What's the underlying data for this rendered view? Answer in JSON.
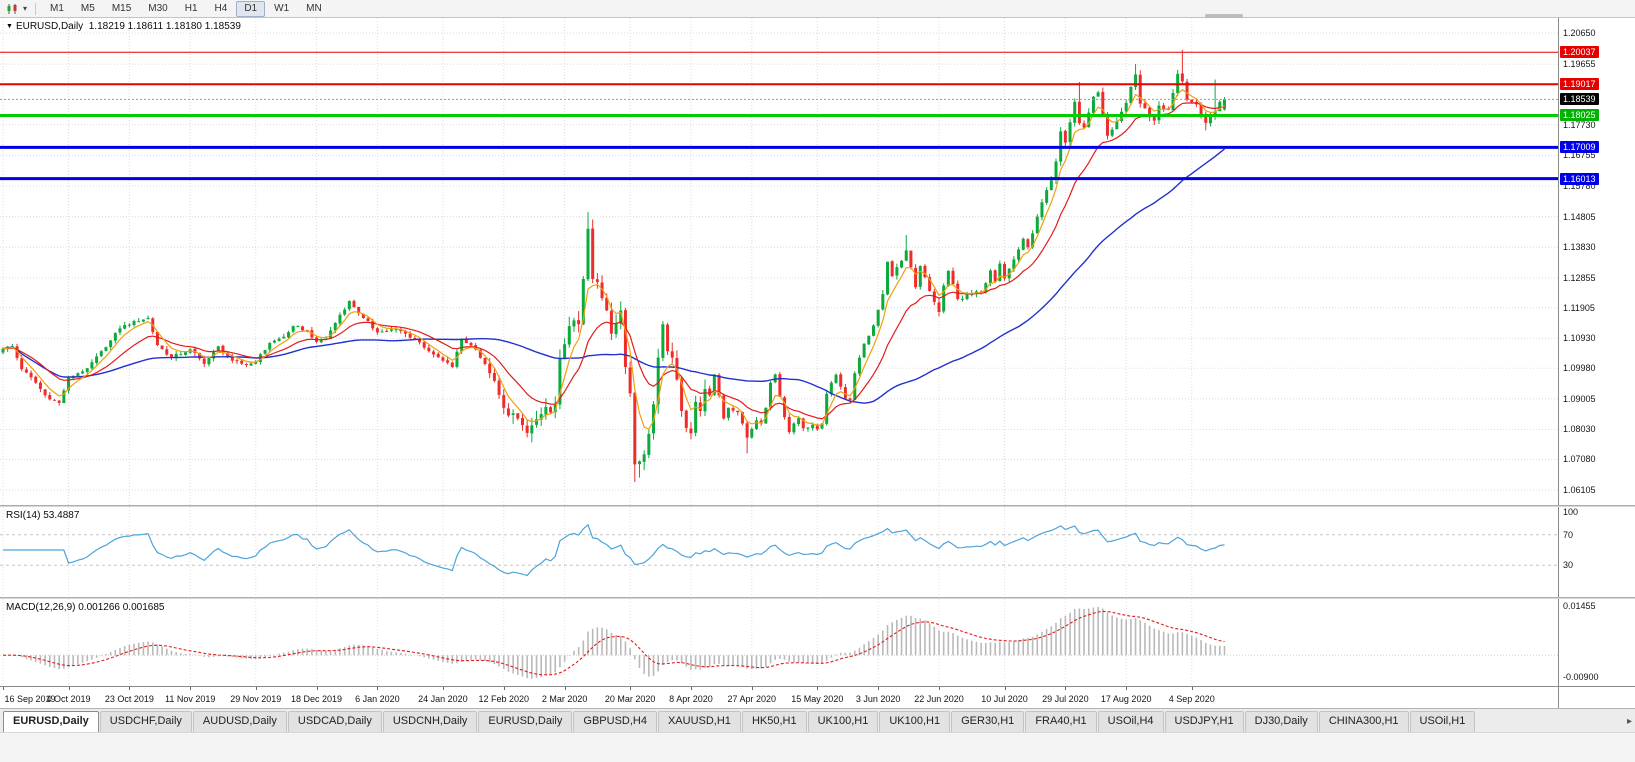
{
  "toolbar": {
    "timeframes": [
      {
        "label": "M1",
        "active": false
      },
      {
        "label": "M5",
        "active": false
      },
      {
        "label": "M15",
        "active": false
      },
      {
        "label": "M30",
        "active": false
      },
      {
        "label": "H1",
        "active": false
      },
      {
        "label": "H4",
        "active": false
      },
      {
        "label": "D1",
        "active": true
      },
      {
        "label": "W1",
        "active": false
      },
      {
        "label": "MN",
        "active": false
      }
    ]
  },
  "chart": {
    "symbol": "EURUSD,Daily",
    "ohlc": "1.18219 1.18611 1.18180 1.18539"
  },
  "price_axis": {
    "plain_labels": [
      "1.20650",
      "1.19655",
      "1.17730",
      "1.16755",
      "1.15780",
      "1.14805",
      "1.13830",
      "1.12855",
      "1.11905",
      "1.10930",
      "1.09980",
      "1.09005",
      "1.08030",
      "1.07080",
      "1.06105"
    ],
    "badges": [
      {
        "text": "1.20037",
        "color": "#e60000"
      },
      {
        "text": "1.19017",
        "color": "#e60000"
      },
      {
        "text": "1.18539",
        "color": "#000000"
      },
      {
        "text": "1.18025",
        "color": "#00b300"
      },
      {
        "text": "1.17009",
        "color": "#0000e6"
      },
      {
        "text": "1.16013",
        "color": "#0000e6"
      }
    ]
  },
  "hlines": [
    {
      "price": 1.20037,
      "color": "#e60000",
      "width": 1
    },
    {
      "price": 1.19017,
      "color": "#e60000",
      "width": 2
    },
    {
      "price": 1.18025,
      "color": "#00cc00",
      "width": 3
    },
    {
      "price": 1.17009,
      "color": "#0000e6",
      "width": 3
    },
    {
      "price": 1.16013,
      "color": "#0000e6",
      "width": 3
    }
  ],
  "bid_line": {
    "price": 1.18539,
    "color": "#999999"
  },
  "date_axis": {
    "labels": [
      "16 Sep 2019",
      "4 Oct 2019",
      "23 Oct 2019",
      "11 Nov 2019",
      "29 Nov 2019",
      "18 Dec 2019",
      "6 Jan 2020",
      "24 Jan 2020",
      "12 Feb 2020",
      "2 Mar 2020",
      "20 Mar 2020",
      "8 Apr 2020",
      "27 Apr 2020",
      "15 May 2020",
      "3 Jun 2020",
      "22 Jun 2020",
      "10 Jul 2020",
      "29 Jul 2020",
      "17 Aug 2020",
      "4 Sep 2020"
    ]
  },
  "rsi": {
    "label": "RSI(14) 53.4887",
    "period": 14,
    "current": 53.4887,
    "color": "#4da3db",
    "levels": [
      {
        "value": 100,
        "text": "100",
        "line": false
      },
      {
        "value": 70,
        "text": "70",
        "line": true
      },
      {
        "value": 30,
        "text": "30",
        "line": true
      }
    ]
  },
  "macd": {
    "label": "MACD(12,26,9) 0.001266 0.001685",
    "fast": 12,
    "slow": 26,
    "signal": 9,
    "macd_value": 0.001266,
    "signal_value": 0.001685,
    "axis_top": "0.01455",
    "axis_bottom": "-0.00900",
    "hist_color": "#b9b9b9",
    "signal_color": "#e41b1b"
  },
  "tabs": {
    "items": [
      {
        "label": "EURUSD,Daily",
        "active": true
      },
      {
        "label": "USDCHF,Daily",
        "active": false
      },
      {
        "label": "AUDUSD,Daily",
        "active": false
      },
      {
        "label": "USDCAD,Daily",
        "active": false
      },
      {
        "label": "USDCNH,Daily",
        "active": false
      },
      {
        "label": "EURUSD,Daily",
        "active": false
      },
      {
        "label": "GBPUSD,H4",
        "active": false
      },
      {
        "label": "XAUUSD,H1",
        "active": false
      },
      {
        "label": "HK50,H1",
        "active": false
      },
      {
        "label": "UK100,H1",
        "active": false
      },
      {
        "label": "UK100,H1",
        "active": false
      },
      {
        "label": "GER30,H1",
        "active": false
      },
      {
        "label": "FRA40,H1",
        "active": false
      },
      {
        "label": "USOil,H4",
        "active": false
      },
      {
        "label": "USDJPY,H1",
        "active": false
      },
      {
        "label": "DJ30,Daily",
        "active": false
      },
      {
        "label": "CHINA300,H1",
        "active": false
      },
      {
        "label": "USOil,H1",
        "active": false
      }
    ],
    "scroll_right_icon": "▸"
  },
  "chart_data": {
    "type": "candlestick",
    "symbol": "EURUSD",
    "timeframe": "Daily",
    "bars": 262,
    "current_bar": {
      "open": 1.18219,
      "high": 1.18611,
      "low": 1.1818,
      "close": 1.18539
    },
    "y_range": [
      1.05627,
      1.21127
    ],
    "tick_bars": [
      0,
      14,
      27,
      40,
      54,
      67,
      80,
      94,
      107,
      120,
      134,
      147,
      160,
      174,
      187,
      200,
      214,
      227,
      240,
      254
    ],
    "up_color": "#0caa3c",
    "down_color": "#ee2c2c",
    "ma": [
      {
        "kind": "sma",
        "period": 52,
        "color": "#2230cf",
        "width": 1.4
      },
      {
        "kind": "ema",
        "period": 15,
        "color": "#e41b1b",
        "width": 1.2
      },
      {
        "kind": "ema",
        "period": 5,
        "color": "#efa00b",
        "width": 1.2
      }
    ],
    "anchors": [
      [
        0,
        1.106
      ],
      [
        2,
        1.1068
      ],
      [
        4,
        1.0995
      ],
      [
        7,
        1.0952
      ],
      [
        9,
        1.0912
      ],
      [
        12,
        1.0888
      ],
      [
        14,
        1.0968
      ],
      [
        18,
        1.0998
      ],
      [
        22,
        1.1065
      ],
      [
        25,
        1.1125
      ],
      [
        28,
        1.1148
      ],
      [
        31,
        1.1158
      ],
      [
        33,
        1.1072
      ],
      [
        36,
        1.1032
      ],
      [
        40,
        1.1058
      ],
      [
        43,
        1.1012
      ],
      [
        46,
        1.1068
      ],
      [
        49,
        1.1022
      ],
      [
        52,
        1.1008
      ],
      [
        54,
        1.1018
      ],
      [
        57,
        1.1078
      ],
      [
        60,
        1.1098
      ],
      [
        62,
        1.1132
      ],
      [
        65,
        1.1118
      ],
      [
        67,
        1.1082
      ],
      [
        69,
        1.1092
      ],
      [
        72,
        1.1168
      ],
      [
        74,
        1.1212
      ],
      [
        77,
        1.1158
      ],
      [
        80,
        1.1112
      ],
      [
        84,
        1.1122
      ],
      [
        88,
        1.1092
      ],
      [
        92,
        1.1042
      ],
      [
        94,
        1.1022
      ],
      [
        96,
        1.1002
      ],
      [
        98,
        1.1092
      ],
      [
        101,
        1.1058
      ],
      [
        104,
        1.0982
      ],
      [
        107,
        1.0872
      ],
      [
        110,
        1.0838
      ],
      [
        112,
        1.0792
      ],
      [
        115,
        1.0852
      ],
      [
        118,
        1.0882
      ],
      [
        119,
        1.1028
      ],
      [
        121,
        1.1132
      ],
      [
        123,
        1.1138
      ],
      [
        124,
        1.1282
      ],
      [
        125,
        1.1442
      ],
      [
        126,
        1.1282
      ],
      [
        127,
        1.1272
      ],
      [
        129,
        1.1182
      ],
      [
        130,
        1.1108
      ],
      [
        132,
        1.1182
      ],
      [
        133,
        1.1002
      ],
      [
        134,
        1.0918
      ],
      [
        135,
        1.0692
      ],
      [
        136,
        1.0702
      ],
      [
        137,
        1.0724
      ],
      [
        138,
        1.0789
      ],
      [
        139,
        1.0883
      ],
      [
        140,
        1.1032
      ],
      [
        141,
        1.1138
      ],
      [
        142,
        1.1052
      ],
      [
        143,
        1.1032
      ],
      [
        144,
        1.0962
      ],
      [
        145,
        1.0862
      ],
      [
        146,
        1.0808
      ],
      [
        147,
        1.0791
      ],
      [
        148,
        1.0891
      ],
      [
        149,
        1.0862
      ],
      [
        150,
        1.0932
      ],
      [
        151,
        1.0912
      ],
      [
        152,
        1.0978
      ],
      [
        153,
        1.0912
      ],
      [
        154,
        1.0838
      ],
      [
        155,
        1.0872
      ],
      [
        157,
        1.0858
      ],
      [
        158,
        1.0822
      ],
      [
        159,
        1.0777
      ],
      [
        161,
        1.0832
      ],
      [
        162,
        1.0822
      ],
      [
        163,
        1.0872
      ],
      [
        164,
        1.0952
      ],
      [
        165,
        1.0978
      ],
      [
        166,
        1.0907
      ],
      [
        167,
        1.0842
      ],
      [
        168,
        1.0795
      ],
      [
        170,
        1.0839
      ],
      [
        171,
        1.0807
      ],
      [
        173,
        1.0818
      ],
      [
        174,
        1.0804
      ],
      [
        175,
        1.0822
      ],
      [
        176,
        1.0917
      ],
      [
        178,
        1.0977
      ],
      [
        180,
        1.0902
      ],
      [
        181,
        1.0897
      ],
      [
        182,
        1.0982
      ],
      [
        184,
        1.1076
      ],
      [
        185,
        1.1101
      ],
      [
        186,
        1.1134
      ],
      [
        188,
        1.1234
      ],
      [
        189,
        1.1337
      ],
      [
        190,
        1.1291
      ],
      [
        192,
        1.134
      ],
      [
        193,
        1.1373
      ],
      [
        195,
        1.1256
      ],
      [
        196,
        1.1323
      ],
      [
        198,
        1.1244
      ],
      [
        200,
        1.1177
      ],
      [
        201,
        1.1261
      ],
      [
        202,
        1.1308
      ],
      [
        204,
        1.1218
      ],
      [
        205,
        1.1219
      ],
      [
        207,
        1.1234
      ],
      [
        209,
        1.1239
      ],
      [
        211,
        1.1309
      ],
      [
        212,
        1.1274
      ],
      [
        213,
        1.1331
      ],
      [
        214,
        1.1284
      ],
      [
        216,
        1.1344
      ],
      [
        218,
        1.141
      ],
      [
        219,
        1.1383
      ],
      [
        220,
        1.1427
      ],
      [
        222,
        1.1526
      ],
      [
        224,
        1.1596
      ],
      [
        225,
        1.1656
      ],
      [
        226,
        1.1752
      ],
      [
        227,
        1.1716
      ],
      [
        229,
        1.1846
      ],
      [
        230,
        1.1778
      ],
      [
        231,
        1.1764
      ],
      [
        233,
        1.1862
      ],
      [
        234,
        1.1876
      ],
      [
        236,
        1.1738
      ],
      [
        238,
        1.1784
      ],
      [
        240,
        1.1842
      ],
      [
        242,
        1.1933
      ],
      [
        243,
        1.184
      ],
      [
        245,
        1.1797
      ],
      [
        246,
        1.1786
      ],
      [
        247,
        1.1834
      ],
      [
        249,
        1.182
      ],
      [
        251,
        1.1935
      ],
      [
        252,
        1.1911
      ],
      [
        253,
        1.1853
      ],
      [
        255,
        1.1838
      ],
      [
        257,
        1.1779
      ],
      [
        258,
        1.1801
      ],
      [
        259,
        1.1815
      ],
      [
        260,
        1.1846
      ],
      [
        261,
        1.18539
      ]
    ],
    "wick_overrides": {
      "12": {
        "l": 1.0879
      },
      "112": {
        "l": 1.0778
      },
      "125": {
        "h": 1.1495
      },
      "135": {
        "l": 1.0636
      },
      "136": {
        "l": 1.065
      },
      "141": {
        "h": 1.1148
      },
      "159": {
        "l": 1.0727
      },
      "193": {
        "h": 1.1422
      },
      "230": {
        "h": 1.1909
      },
      "242": {
        "h": 1.1966
      },
      "252": {
        "h": 1.2011
      },
      "257": {
        "l": 1.1755
      },
      "259": {
        "h": 1.1917
      },
      "261": {
        "o": 1.18219,
        "h": 1.18611,
        "l": 1.1818,
        "c": 1.18539
      }
    }
  }
}
